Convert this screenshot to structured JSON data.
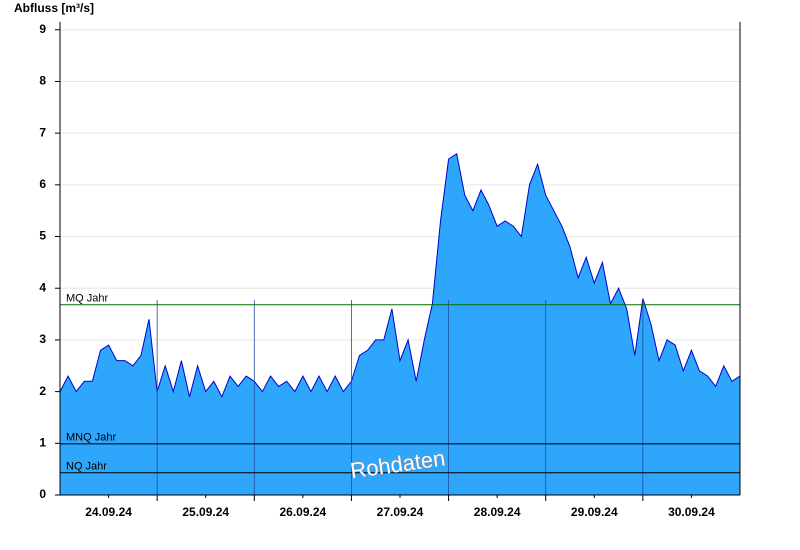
{
  "chart_data": {
    "type": "area",
    "ylabel": "Abfluss [m³/s]",
    "annotation": "Rohdaten",
    "color": "#2ea6fc",
    "line_color": "#0000cc",
    "x": [
      0,
      2,
      4,
      6,
      8,
      10,
      12,
      14,
      16,
      18,
      20,
      22,
      24,
      26,
      28,
      30,
      32,
      34,
      36,
      38,
      40,
      42,
      44,
      46,
      48,
      50,
      52,
      54,
      56,
      58,
      60,
      62,
      64,
      66,
      68,
      70,
      72,
      74,
      76,
      78,
      80,
      82,
      84,
      86,
      88,
      90,
      92,
      94,
      96,
      98,
      100,
      102,
      104,
      106,
      108,
      110,
      112,
      114,
      116,
      118,
      120,
      122,
      124,
      126,
      128,
      130,
      132,
      134,
      136,
      138,
      140,
      142,
      144,
      146,
      148,
      150,
      152,
      154,
      156,
      158,
      160,
      162,
      164,
      166,
      168
    ],
    "values": [
      2.0,
      2.3,
      2.0,
      2.2,
      2.2,
      2.8,
      2.9,
      2.6,
      2.6,
      2.5,
      2.7,
      3.4,
      2.0,
      2.5,
      2.0,
      2.6,
      1.9,
      2.5,
      2.0,
      2.2,
      1.9,
      2.3,
      2.1,
      2.3,
      2.2,
      2.0,
      2.3,
      2.1,
      2.2,
      2.0,
      2.3,
      2.0,
      2.3,
      2.0,
      2.3,
      2.0,
      2.2,
      2.7,
      2.8,
      3.0,
      3.0,
      3.6,
      2.6,
      3.0,
      2.2,
      3.0,
      3.7,
      5.3,
      6.5,
      6.6,
      5.8,
      5.5,
      5.9,
      5.6,
      5.2,
      5.3,
      5.2,
      5.0,
      6.0,
      6.4,
      5.8,
      5.5,
      5.2,
      4.8,
      4.2,
      4.6,
      4.1,
      4.5,
      3.7,
      4.0,
      3.6,
      2.7,
      3.8,
      3.3,
      2.6,
      3.0,
      2.9,
      2.4,
      2.8,
      2.4,
      2.3,
      2.1,
      2.5,
      2.2,
      2.3
    ],
    "xlim": [
      0,
      168
    ],
    "xticks": [
      {
        "value": 12,
        "label": "24.09.24"
      },
      {
        "value": 36,
        "label": "25.09.24"
      },
      {
        "value": 60,
        "label": "26.09.24"
      },
      {
        "value": 84,
        "label": "27.09.24"
      },
      {
        "value": 108,
        "label": "28.09.24"
      },
      {
        "value": 132,
        "label": "29.09.24"
      },
      {
        "value": 156,
        "label": "30.09.24"
      }
    ],
    "xgrid": [
      24,
      48,
      72,
      96,
      120,
      144
    ],
    "ylim": [
      0,
      9.15
    ],
    "yticks": [
      0,
      1,
      2,
      3,
      4,
      5,
      6,
      7,
      8,
      9
    ],
    "grid": true,
    "reference_lines": [
      {
        "label": "MQ Jahr",
        "value": 3.68,
        "color": "#007000"
      },
      {
        "label": "MNQ Jahr",
        "value": 0.99,
        "color": "#000000"
      },
      {
        "label": "NQ Jahr",
        "value": 0.43,
        "color": "#000000"
      }
    ]
  }
}
